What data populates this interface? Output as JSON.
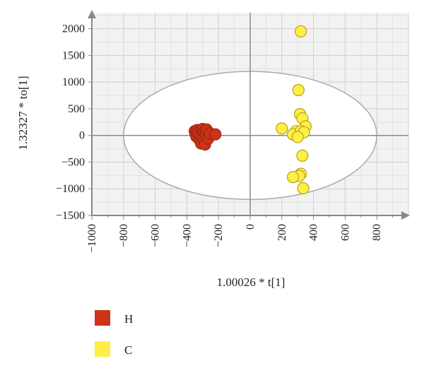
{
  "chart_data": {
    "type": "scatter",
    "xlabel": "1.00026 * t[1]",
    "ylabel": "1.32327 * to[1]",
    "xlim": [
      -1000,
      1000
    ],
    "ylim": [
      -1500,
      2300
    ],
    "x_ticks": [
      "−1000",
      "−800",
      "−600",
      "−400",
      "−200",
      "0",
      "200",
      "400",
      "600",
      "800"
    ],
    "x_tick_values": [
      -1000,
      -800,
      -600,
      -400,
      -200,
      0,
      200,
      400,
      600,
      800
    ],
    "y_ticks": [
      "2000",
      "1500",
      "1000",
      "500",
      "0",
      "−500",
      "−1000",
      "−1500"
    ],
    "y_tick_values": [
      2000,
      1500,
      1000,
      500,
      0,
      -500,
      -1000,
      -1500
    ],
    "grid": true,
    "ellipse": {
      "cx": 0,
      "cy": 0,
      "rx": 800,
      "ry": 1200
    },
    "legend_position": "bottom-left",
    "series": [
      {
        "name": "H",
        "color": "#cc3318",
        "stroke": "#9c2410",
        "points": [
          [
            -350,
            80
          ],
          [
            -345,
            30
          ],
          [
            -340,
            -20
          ],
          [
            -335,
            100
          ],
          [
            -330,
            50
          ],
          [
            -320,
            -80
          ],
          [
            -315,
            10
          ],
          [
            -310,
            -150
          ],
          [
            -305,
            90
          ],
          [
            -300,
            120
          ],
          [
            -295,
            -40
          ],
          [
            -290,
            60
          ],
          [
            -285,
            -170
          ],
          [
            -280,
            20
          ],
          [
            -275,
            110
          ],
          [
            -265,
            -60
          ],
          [
            -255,
            40
          ],
          [
            -220,
            20
          ]
        ]
      },
      {
        "name": "C",
        "color": "#ffee44",
        "stroke": "#b8a218",
        "points": [
          [
            320,
            1950
          ],
          [
            305,
            850
          ],
          [
            315,
            400
          ],
          [
            330,
            320
          ],
          [
            200,
            130
          ],
          [
            350,
            170
          ],
          [
            290,
            80
          ],
          [
            270,
            20
          ],
          [
            320,
            80
          ],
          [
            340,
            60
          ],
          [
            300,
            -30
          ],
          [
            330,
            -380
          ],
          [
            320,
            -720
          ],
          [
            310,
            -760
          ],
          [
            270,
            -780
          ],
          [
            335,
            -990
          ]
        ]
      }
    ]
  }
}
